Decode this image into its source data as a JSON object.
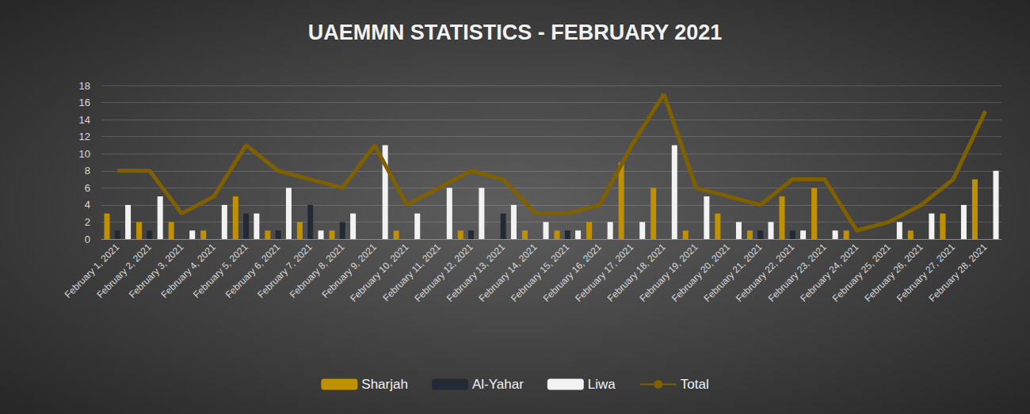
{
  "chart_data": {
    "type": "bar",
    "title": "UAEMMN STATISTICS - FEBRUARY 2021",
    "categories": [
      "February 1, 2021",
      "February 2, 2021",
      "February 3, 2021",
      "February 4, 2021",
      "February 5, 2021",
      "February 6, 2021",
      "February 7, 2021",
      "February 8, 2021",
      "February 9, 2021",
      "February 10, 2021",
      "February 11, 2021",
      "February 12, 2021",
      "February 13, 2021",
      "February 14, 2021",
      "February 15, 2021",
      "February 16, 2021",
      "February 17, 2021",
      "February 18, 2021",
      "February 19, 2021",
      "February 20, 2021",
      "February 21, 2021",
      "February 22, 2021",
      "February 23, 2021",
      "February 24, 2021",
      "February 25, 2021",
      "February 26, 2021",
      "February 27, 2021",
      "February 28, 2021"
    ],
    "series": [
      {
        "name": "Sharjah",
        "type": "bar",
        "color": "#bf9000",
        "values": [
          3,
          2,
          2,
          1,
          5,
          1,
          2,
          1,
          0,
          1,
          0,
          1,
          0,
          1,
          1,
          2,
          9,
          6,
          1,
          3,
          1,
          5,
          6,
          1,
          0,
          1,
          3,
          7
        ]
      },
      {
        "name": "Al-Yahar",
        "type": "bar",
        "color": "#222a35",
        "values": [
          1,
          1,
          0,
          0,
          3,
          1,
          4,
          2,
          0,
          0,
          0,
          1,
          3,
          0,
          1,
          0,
          0,
          0,
          0,
          0,
          1,
          1,
          0,
          0,
          0,
          0,
          0,
          0
        ]
      },
      {
        "name": "Liwa",
        "type": "bar",
        "color": "#f2f2f2",
        "values": [
          4,
          5,
          1,
          4,
          3,
          6,
          1,
          3,
          11,
          3,
          6,
          6,
          4,
          2,
          1,
          2,
          2,
          11,
          5,
          2,
          2,
          1,
          1,
          0,
          2,
          3,
          4,
          8
        ]
      },
      {
        "name": "Total",
        "type": "line",
        "color": "#7f6000",
        "values": [
          8,
          8,
          3,
          5,
          11,
          8,
          7,
          6,
          11,
          4,
          6,
          8,
          7,
          3,
          3,
          4,
          11,
          17,
          6,
          5,
          4,
          7,
          7,
          1,
          2,
          4,
          7,
          15
        ]
      }
    ],
    "ylim": [
      0,
      18
    ],
    "yticks": [
      0,
      2,
      4,
      6,
      8,
      10,
      12,
      14,
      16,
      18
    ],
    "grid": true,
    "legend": "bottom"
  }
}
